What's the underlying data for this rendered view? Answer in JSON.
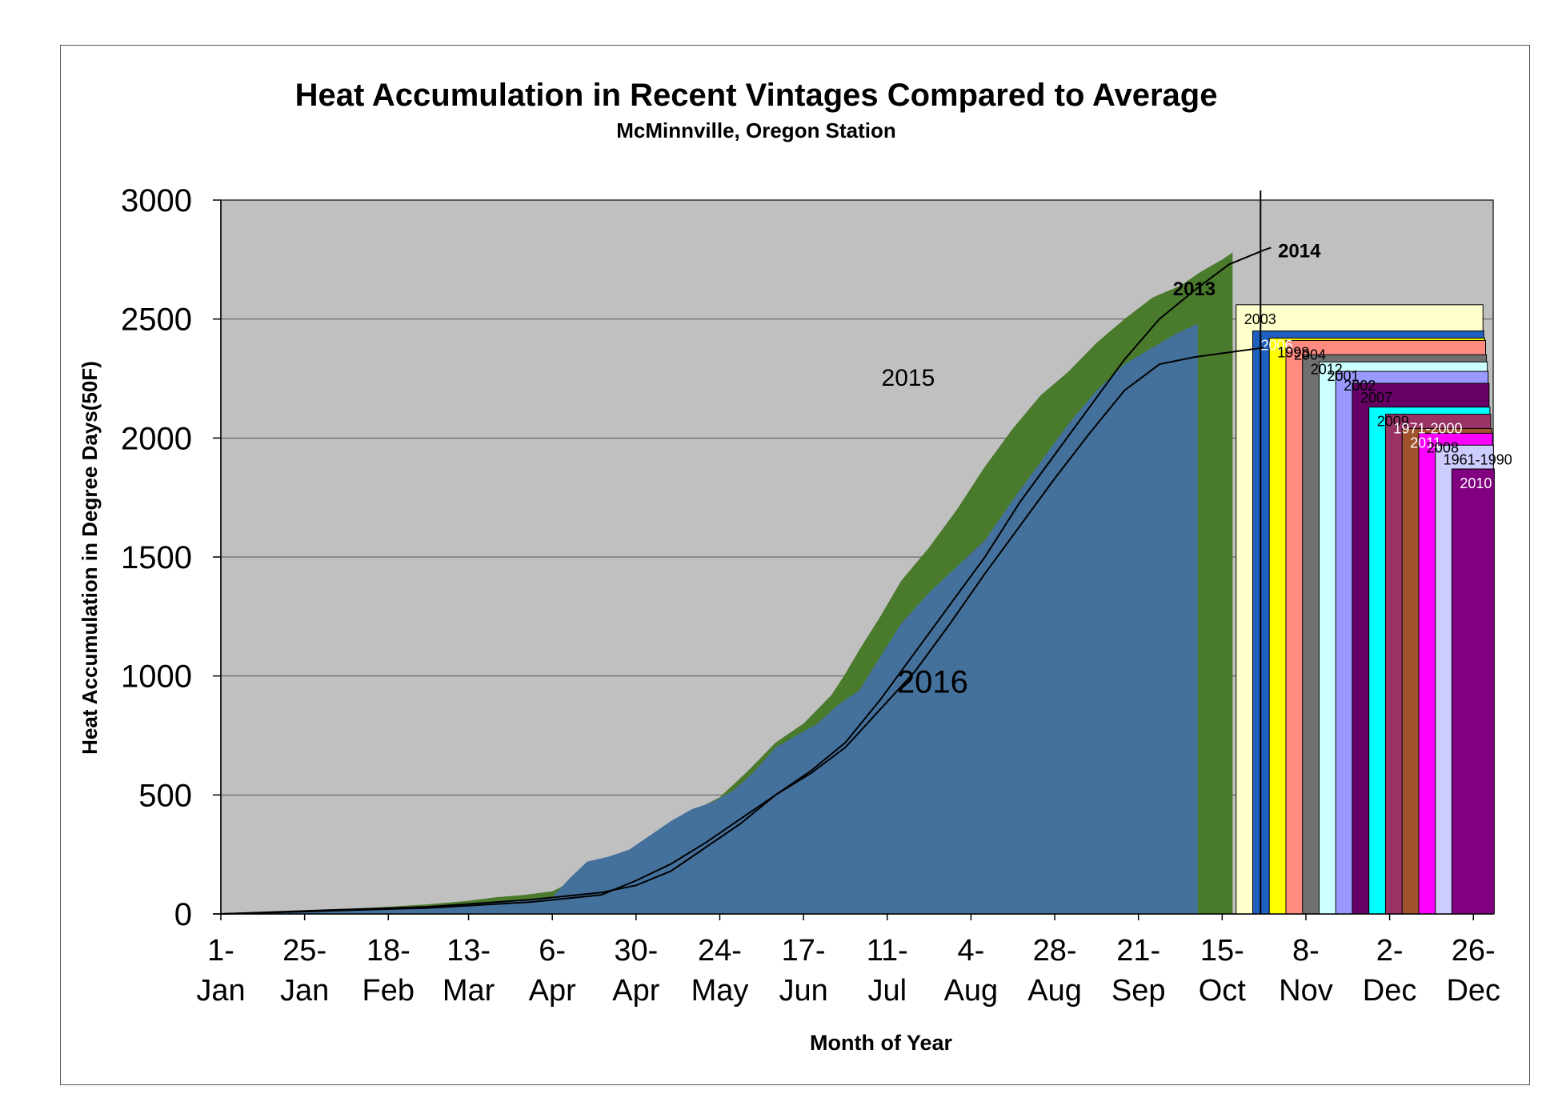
{
  "chart_data": {
    "type": "area",
    "title": "Heat Accumulation in Recent Vintages Compared to Average",
    "subtitle": "McMinnville, Oregon Station",
    "xlabel": "Month of Year",
    "ylabel": "Heat Accumulation in Degree Days(50F)",
    "ylim": [
      0,
      3000
    ],
    "y_ticks": [
      "0",
      "500",
      "1000",
      "1500",
      "2000",
      "2500",
      "3000"
    ],
    "grid": true,
    "x_ticks": [
      {
        "top": "1-",
        "bottom": "Jan",
        "day": 1
      },
      {
        "top": "25-",
        "bottom": "Jan",
        "day": 25
      },
      {
        "top": "18-",
        "bottom": "Feb",
        "day": 49
      },
      {
        "top": "13-",
        "bottom": "Mar",
        "day": 72
      },
      {
        "top": "6-",
        "bottom": "Apr",
        "day": 96
      },
      {
        "top": "30-",
        "bottom": "Apr",
        "day": 120
      },
      {
        "top": "24-",
        "bottom": "May",
        "day": 144
      },
      {
        "top": "17-",
        "bottom": "Jun",
        "day": 168
      },
      {
        "top": "11-",
        "bottom": "Jul",
        "day": 192
      },
      {
        "top": "4-",
        "bottom": "Aug",
        "day": 216
      },
      {
        "top": "28-",
        "bottom": "Aug",
        "day": 240
      },
      {
        "top": "21-",
        "bottom": "Sep",
        "day": 264
      },
      {
        "top": "15-",
        "bottom": "Oct",
        "day": 288
      },
      {
        "top": "8-",
        "bottom": "Nov",
        "day": 312
      },
      {
        "top": "2-",
        "bottom": "Dec",
        "day": 336
      },
      {
        "top": "26-",
        "bottom": "Dec",
        "day": 360
      }
    ],
    "series": [
      {
        "name": "2015",
        "color": "#4a7a2c",
        "kind": "area",
        "x": [
          1,
          20,
          40,
          60,
          72,
          80,
          88,
          96,
          105,
          113,
          120,
          128,
          136,
          144,
          152,
          160,
          168,
          176,
          180,
          184,
          190,
          196,
          204,
          212,
          220,
          228,
          236,
          244,
          252,
          260,
          268,
          276,
          282,
          288,
          291
        ],
        "y": [
          0,
          10,
          22,
          40,
          55,
          70,
          80,
          95,
          160,
          230,
          280,
          370,
          430,
          490,
          600,
          720,
          800,
          920,
          1010,
          1110,
          1250,
          1400,
          1540,
          1700,
          1880,
          2040,
          2180,
          2280,
          2400,
          2500,
          2590,
          2640,
          2700,
          2750,
          2780
        ]
      },
      {
        "name": "2016",
        "color": "#44719c",
        "kind": "area",
        "x": [
          1,
          20,
          40,
          60,
          72,
          80,
          88,
          96,
          101,
          106,
          112,
          118,
          124,
          130,
          136,
          142,
          148,
          154,
          160,
          166,
          172,
          178,
          184,
          190,
          196,
          204,
          212,
          220,
          228,
          236,
          244,
          252,
          260,
          268,
          275,
          281
        ],
        "y": [
          0,
          8,
          18,
          30,
          40,
          50,
          60,
          70,
          150,
          220,
          240,
          270,
          330,
          390,
          440,
          470,
          520,
          600,
          700,
          750,
          800,
          880,
          940,
          1080,
          1220,
          1350,
          1460,
          1570,
          1740,
          1900,
          2060,
          2200,
          2310,
          2380,
          2440,
          2480
        ]
      },
      {
        "name": "2014",
        "color": "#000000",
        "kind": "line",
        "x": [
          1,
          30,
          60,
          90,
          110,
          120,
          130,
          140,
          150,
          160,
          170,
          180,
          190,
          200,
          210,
          220,
          230,
          240,
          250,
          260,
          270,
          280,
          290,
          300,
          302
        ],
        "y": [
          0,
          15,
          30,
          60,
          90,
          120,
          180,
          280,
          380,
          500,
          600,
          720,
          900,
          1100,
          1300,
          1500,
          1730,
          1930,
          2130,
          2330,
          2500,
          2620,
          2730,
          2790,
          2800
        ]
      },
      {
        "name": "2013",
        "color": "#000000",
        "kind": "line",
        "x": [
          1,
          30,
          60,
          90,
          110,
          120,
          130,
          140,
          150,
          160,
          170,
          180,
          190,
          200,
          210,
          220,
          230,
          240,
          250,
          260,
          270,
          280,
          290,
          300
        ],
        "y": [
          0,
          12,
          25,
          50,
          80,
          140,
          210,
          300,
          400,
          500,
          590,
          700,
          860,
          1020,
          1220,
          1430,
          1630,
          1830,
          2020,
          2200,
          2310,
          2340,
          2360,
          2380
        ]
      }
    ],
    "ending_totals": [
      {
        "name": "2003",
        "value": 2560,
        "color": "#ffffcc",
        "label_color": "#000000"
      },
      {
        "name": "2006",
        "value": 2450,
        "color": "#1f5fbf",
        "label_color": "#ffffff"
      },
      {
        "name": "1998",
        "value": 2420,
        "color": "#ffff00",
        "label_color": "#000000"
      },
      {
        "name": "2004",
        "value": 2410,
        "color": "#ff8a80",
        "label_color": "#000000"
      },
      {
        "name": "2012",
        "value": 2350,
        "color": "#707070",
        "label_color": "#000000"
      },
      {
        "name": "2001",
        "value": 2320,
        "color": "#ccffff",
        "label_color": "#000000"
      },
      {
        "name": "2002",
        "value": 2280,
        "color": "#9999ff",
        "label_color": "#000000"
      },
      {
        "name": "2007",
        "value": 2230,
        "color": "#660066",
        "label_color": "#000000"
      },
      {
        "name": "2009",
        "value": 2130,
        "color": "#00ffff",
        "label_color": "#000000"
      },
      {
        "name": "1971-2000",
        "value": 2100,
        "color": "#993366",
        "label_color": "#ffffff"
      },
      {
        "name": "2011",
        "value": 2040,
        "color": "#a0522d",
        "label_color": "#ffffff"
      },
      {
        "name": "2008",
        "value": 2020,
        "color": "#ff00ff",
        "label_color": "#000000"
      },
      {
        "name": "1961-1990",
        "value": 1970,
        "color": "#ccccff",
        "label_color": "#000000"
      },
      {
        "name": "2010",
        "value": 1870,
        "color": "#800080",
        "label_color": "#ffffff"
      }
    ]
  }
}
